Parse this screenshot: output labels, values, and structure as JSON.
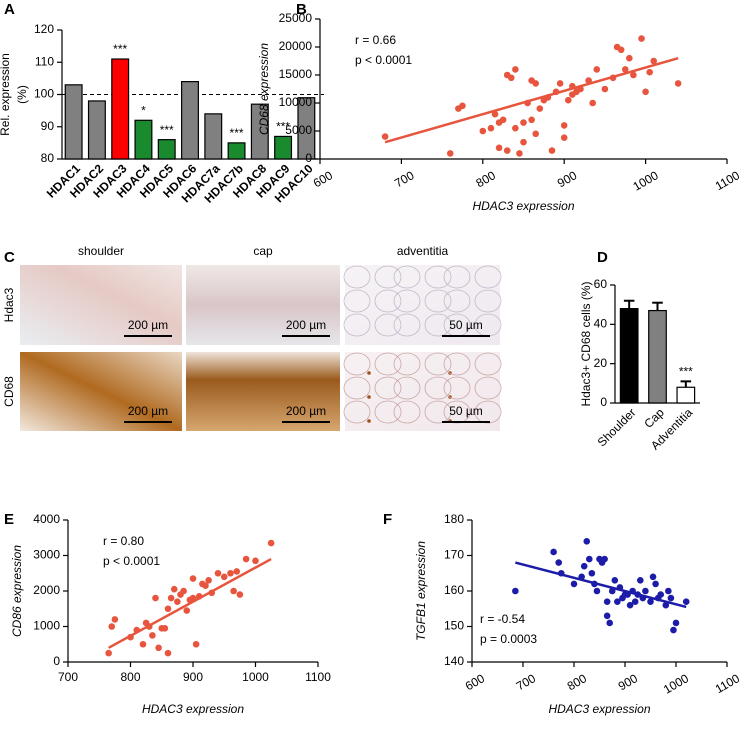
{
  "chart_data": [
    {
      "type": "bar",
      "panel_label": "A",
      "ylabel": [
        "Rel. expression",
        "(%)"
      ],
      "categories": [
        "HDAC1",
        "HDAC2",
        "HDAC3",
        "HDAC4",
        "HDAC5",
        "HDAC6",
        "HDAC7a",
        "HDAC7b",
        "HDAC8",
        "HDAC9",
        "HDAC10"
      ],
      "values": [
        103,
        98,
        111,
        92,
        86,
        104,
        94,
        85,
        97,
        87,
        99
      ],
      "colors": [
        "#808080",
        "#808080",
        "#ff0000",
        "#1a8a2e",
        "#1a8a2e",
        "#808080",
        "#808080",
        "#1a8a2e",
        "#808080",
        "#1a8a2e",
        "#808080"
      ],
      "annotations": [
        null,
        null,
        "***",
        "*",
        "***",
        null,
        null,
        "***",
        null,
        "***",
        null
      ],
      "reference_line": 100,
      "ylim": [
        80,
        120
      ],
      "yticks": [
        80,
        90,
        100,
        110,
        120
      ]
    },
    {
      "type": "scatter",
      "panel_label": "B",
      "xlabel": "HDAC3 expression",
      "ylabel": "CD68 expression",
      "color": "#e8553e",
      "x": [
        680,
        760,
        770,
        775,
        800,
        810,
        815,
        820,
        820,
        825,
        830,
        830,
        835,
        840,
        840,
        845,
        850,
        850,
        855,
        860,
        860,
        865,
        865,
        870,
        875,
        880,
        885,
        890,
        895,
        900,
        900,
        905,
        910,
        910,
        915,
        920,
        930,
        935,
        940,
        950,
        960,
        965,
        970,
        975,
        980,
        985,
        995,
        1000,
        1005,
        1010,
        1040
      ],
      "values": [
        4000,
        1000,
        9000,
        9500,
        5000,
        5500,
        8000,
        2000,
        6500,
        7000,
        1500,
        15000,
        14500,
        16000,
        5500,
        1000,
        3000,
        6500,
        10000,
        7000,
        14000,
        13500,
        4500,
        9000,
        10500,
        11000,
        1500,
        12000,
        13500,
        6000,
        3800,
        10500,
        11500,
        13000,
        12000,
        12500,
        14000,
        10000,
        16000,
        12500,
        14500,
        20000,
        19500,
        16000,
        18000,
        15000,
        21500,
        12000,
        15500,
        17500,
        13500
      ],
      "fit": {
        "x": [
          680,
          1040
        ],
        "values": [
          3000,
          18000
        ]
      },
      "annotations": [
        "r = 0.66",
        "p < 0.0001"
      ],
      "xlim": [
        600,
        1100
      ],
      "xticks": [
        600,
        700,
        800,
        900,
        1000,
        1100
      ],
      "ylim": [
        0,
        25000
      ],
      "yticks": [
        0,
        5000,
        10000,
        15000,
        20000,
        25000
      ]
    },
    {
      "type": "micrograph",
      "panel_label": "C",
      "columns": [
        "shoulder",
        "cap",
        "adventitia"
      ],
      "rows": [
        "Hdac3",
        "CD68"
      ],
      "scale_bars": [
        [
          "200 µm",
          "200 µm",
          "50 µm"
        ],
        [
          "200 µm",
          "200 µm",
          "50 µm"
        ]
      ]
    },
    {
      "type": "bar",
      "panel_label": "D",
      "ylabel": "Hdac3+ CD68 cells (%)",
      "categories": [
        "Shoulder",
        "Cap",
        "Adventitia"
      ],
      "values": [
        48,
        47,
        8
      ],
      "errors": [
        4,
        4,
        3
      ],
      "colors": [
        "#000000",
        "#808080",
        "#ffffff"
      ],
      "annotations": [
        null,
        null,
        "***"
      ],
      "ylim": [
        0,
        60
      ],
      "yticks": [
        0,
        20,
        40,
        60
      ]
    },
    {
      "type": "scatter",
      "panel_label": "E",
      "xlabel": "HDAC3 expression",
      "ylabel": "CD86 expression",
      "color": "#e8553e",
      "x": [
        765,
        770,
        775,
        800,
        810,
        820,
        825,
        830,
        835,
        840,
        845,
        850,
        855,
        860,
        860,
        865,
        870,
        875,
        880,
        885,
        890,
        895,
        900,
        900,
        905,
        910,
        915,
        920,
        925,
        930,
        940,
        950,
        960,
        965,
        970,
        975,
        985,
        1000,
        1025
      ],
      "values": [
        250,
        1000,
        1200,
        700,
        900,
        500,
        1100,
        1000,
        750,
        1800,
        400,
        950,
        950,
        250,
        1500,
        1800,
        2050,
        1700,
        1900,
        2000,
        1450,
        1750,
        1800,
        2350,
        500,
        1850,
        2200,
        2150,
        2300,
        1950,
        2500,
        2400,
        2500,
        2000,
        2550,
        1900,
        2900,
        2850,
        3350
      ],
      "fit": {
        "x": [
          765,
          1025
        ],
        "values": [
          400,
          2900
        ]
      },
      "annotations": [
        "r = 0.80",
        "p < 0.0001"
      ],
      "xlim": [
        700,
        1100
      ],
      "xticks": [
        700,
        800,
        900,
        1000,
        1100
      ],
      "ylim": [
        0,
        4000
      ],
      "yticks": [
        0,
        1000,
        2000,
        3000,
        4000
      ]
    },
    {
      "type": "scatter",
      "panel_label": "F",
      "xlabel": "HDAC3 expression",
      "ylabel": "TGFB1 expression",
      "color": "#1c1ca8",
      "x": [
        685,
        760,
        770,
        775,
        800,
        815,
        820,
        825,
        830,
        835,
        840,
        845,
        850,
        855,
        860,
        865,
        865,
        870,
        875,
        880,
        885,
        890,
        895,
        900,
        905,
        910,
        915,
        920,
        925,
        930,
        935,
        940,
        950,
        955,
        960,
        965,
        970,
        980,
        985,
        990,
        995,
        1000,
        1020
      ],
      "values": [
        160,
        171,
        168,
        165,
        162,
        164,
        167,
        174,
        169,
        165,
        162,
        160,
        169,
        168,
        169,
        157,
        153,
        151,
        160,
        163,
        157,
        161,
        158,
        159,
        159,
        156,
        160,
        157,
        159,
        163,
        158,
        160,
        157,
        164,
        162,
        158,
        159,
        156,
        160,
        158,
        149,
        151,
        157
      ],
      "fit": {
        "x": [
          685,
          1020
        ],
        "values": [
          168,
          155.5
        ]
      },
      "annotations": [
        "r = -0.54",
        "p = 0.0003"
      ],
      "xlim": [
        600,
        1100
      ],
      "xticks": [
        600,
        700,
        800,
        900,
        1000,
        1100
      ],
      "ylim": [
        140,
        180
      ],
      "yticks": [
        140,
        150,
        160,
        170,
        180
      ]
    }
  ]
}
